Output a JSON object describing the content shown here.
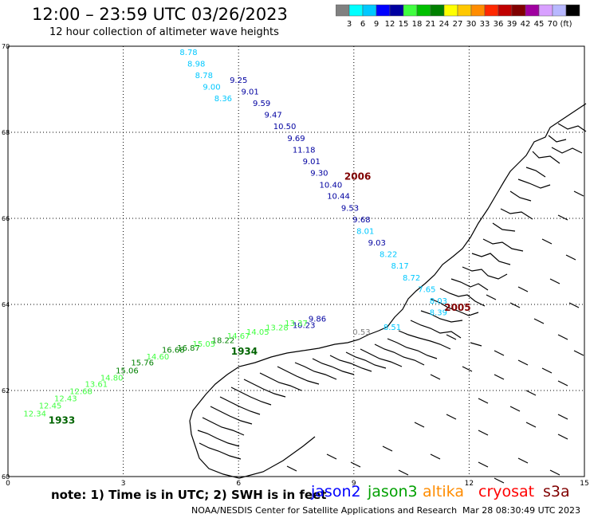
{
  "header": {
    "title": "12:00 – 23:59 UTC 03/26/2023",
    "subtitle": "12 hour collection of altimeter wave heights"
  },
  "colorbar": {
    "colors": [
      "#808080",
      "#00ffff",
      "#00c8ff",
      "#0000ff",
      "#0000a0",
      "#40ff40",
      "#00c000",
      "#008000",
      "#ffff00",
      "#ffc800",
      "#ff8c00",
      "#ff2800",
      "#c00000",
      "#800000",
      "#a000a0",
      "#d8a0ff",
      "#b8b8ff",
      "#000000"
    ],
    "labels": [
      "3",
      "6",
      "9",
      "12",
      "15",
      "18",
      "21",
      "24",
      "27",
      "30",
      "33",
      "36",
      "39",
      "42",
      "45",
      "70",
      "(ft)"
    ]
  },
  "chart_data": {
    "type": "scatter",
    "title": "12:00 – 23:59 UTC 03/26/2023",
    "subtitle": "12 hour collection of altimeter wave heights",
    "xlabel": "",
    "ylabel": "",
    "xlim": [
      0,
      15
    ],
    "ylim": [
      60,
      70
    ],
    "x_ticks": [
      "0",
      "3",
      "6",
      "9",
      "12",
      "15"
    ],
    "y_ticks": [
      "60",
      "62",
      "64",
      "66",
      "68",
      "70"
    ],
    "grid": true,
    "legend_placement": "bottom",
    "series": [
      {
        "name": "jason2",
        "color": "#0000ff",
        "points": [
          {
            "x": 6.0,
            "y": 69.15,
            "label": "9.25",
            "color": "#0000a0"
          },
          {
            "x": 6.3,
            "y": 68.88,
            "label": "9.01",
            "color": "#0000a0"
          },
          {
            "x": 6.6,
            "y": 68.61,
            "label": "9.59",
            "color": "#0000a0"
          },
          {
            "x": 6.9,
            "y": 68.34,
            "label": "9.47",
            "color": "#0000a0"
          },
          {
            "x": 7.2,
            "y": 68.07,
            "label": "10.50",
            "color": "#0000a0"
          },
          {
            "x": 7.5,
            "y": 67.8,
            "label": "9.69",
            "color": "#0000a0"
          },
          {
            "x": 7.7,
            "y": 67.53,
            "label": "11.18",
            "color": "#0000a0"
          },
          {
            "x": 7.9,
            "y": 67.26,
            "label": "9.01",
            "color": "#0000a0"
          },
          {
            "x": 8.1,
            "y": 66.99,
            "label": "9.30",
            "color": "#0000a0"
          },
          {
            "x": 8.4,
            "y": 66.71,
            "label": "10.40",
            "color": "#0000a0"
          },
          {
            "x": 8.6,
            "y": 66.45,
            "label": "10.44",
            "color": "#0000a0"
          },
          {
            "x": 8.9,
            "y": 66.18,
            "label": "9.53",
            "color": "#0000a0"
          },
          {
            "x": 9.2,
            "y": 65.91,
            "label": "9.68",
            "color": "#0000a0"
          },
          {
            "x": 8.05,
            "y": 63.6,
            "label": "9.86",
            "color": "#0000a0"
          },
          {
            "x": 7.7,
            "y": 63.45,
            "label": "10.23",
            "color": "#0000a0"
          }
        ]
      },
      {
        "name": "jason3",
        "color": "#00a000",
        "points": [
          {
            "x": 0.7,
            "y": 61.4,
            "label": "12.34",
            "color": "#40ff40"
          },
          {
            "x": 1.1,
            "y": 61.58,
            "label": "12.45",
            "color": "#40ff40"
          },
          {
            "x": 1.5,
            "y": 61.75,
            "label": "12.43",
            "color": "#40ff40"
          },
          {
            "x": 1.9,
            "y": 61.92,
            "label": "12.68",
            "color": "#40ff40"
          },
          {
            "x": 2.3,
            "y": 62.08,
            "label": "13.61",
            "color": "#40ff40"
          },
          {
            "x": 2.7,
            "y": 62.23,
            "label": "14.80",
            "color": "#40ff40"
          },
          {
            "x": 3.1,
            "y": 62.4,
            "label": "15.06",
            "color": "#008000"
          },
          {
            "x": 3.5,
            "y": 62.58,
            "label": "15.76",
            "color": "#008000"
          },
          {
            "x": 3.9,
            "y": 62.72,
            "label": "14.60",
            "color": "#40ff40"
          },
          {
            "x": 4.3,
            "y": 62.88,
            "label": "16.68",
            "color": "#008000"
          },
          {
            "x": 4.7,
            "y": 62.93,
            "label": "16.87",
            "color": "#008000"
          },
          {
            "x": 5.1,
            "y": 63.02,
            "label": "15.05",
            "color": "#40ff40"
          },
          {
            "x": 5.6,
            "y": 63.1,
            "label": "18.22",
            "color": "#008000"
          },
          {
            "x": 6.0,
            "y": 63.2,
            "label": "14.67",
            "color": "#40ff40"
          },
          {
            "x": 6.5,
            "y": 63.3,
            "label": "14.05",
            "color": "#40ff40"
          },
          {
            "x": 7.0,
            "y": 63.4,
            "label": "13.28",
            "color": "#40ff40"
          },
          {
            "x": 7.5,
            "y": 63.5,
            "label": "13.37",
            "color": "#40ff40"
          }
        ]
      },
      {
        "name": "altika",
        "color": "#ff8c00",
        "points": []
      },
      {
        "name": "cryosat",
        "color": "#ff0000",
        "points": []
      },
      {
        "name": "s3a",
        "color": "#800000",
        "points": [
          {
            "x": 4.7,
            "y": 69.8,
            "label": "8.78",
            "color": "#00c8ff"
          },
          {
            "x": 4.9,
            "y": 69.53,
            "label": "8.98",
            "color": "#00c8ff"
          },
          {
            "x": 5.1,
            "y": 69.26,
            "label": "8.78",
            "color": "#00c8ff"
          },
          {
            "x": 5.3,
            "y": 68.99,
            "label": "9.00",
            "color": "#00c8ff"
          },
          {
            "x": 5.6,
            "y": 68.72,
            "label": "8.36",
            "color": "#00c8ff"
          },
          {
            "x": 9.3,
            "y": 65.64,
            "label": "8.01",
            "color": "#00c8ff"
          },
          {
            "x": 9.6,
            "y": 65.37,
            "label": "9.03",
            "color": "#0000a0"
          },
          {
            "x": 9.9,
            "y": 65.1,
            "label": "8.22",
            "color": "#00c8ff"
          },
          {
            "x": 10.2,
            "y": 64.83,
            "label": "8.17",
            "color": "#00c8ff"
          },
          {
            "x": 10.5,
            "y": 64.56,
            "label": "8.72",
            "color": "#00c8ff"
          },
          {
            "x": 10.9,
            "y": 64.29,
            "label": "7.65",
            "color": "#00c8ff"
          },
          {
            "x": 11.2,
            "y": 64.02,
            "label": "8.03",
            "color": "#00c8ff"
          },
          {
            "x": 11.2,
            "y": 63.75,
            "label": "8.39",
            "color": "#00c8ff"
          },
          {
            "x": 10.0,
            "y": 63.41,
            "label": "8.51",
            "color": "#00c8ff"
          },
          {
            "x": 9.2,
            "y": 63.3,
            "label": "0.53",
            "color": "#808080"
          }
        ]
      }
    ],
    "annotations": [
      {
        "text": "2006",
        "x": 9.1,
        "y": 66.9,
        "color": "#800000"
      },
      {
        "text": "2005",
        "x": 11.7,
        "y": 63.85,
        "color": "#800000"
      },
      {
        "text": "1934",
        "x": 6.15,
        "y": 62.83,
        "color": "#006400"
      },
      {
        "text": "1933",
        "x": 1.4,
        "y": 61.23,
        "color": "#006400"
      }
    ]
  },
  "footer": {
    "note": "note:  1) Time is in UTC;  2) SWH is in feet",
    "legend": [
      {
        "label": "jason2",
        "color": "#0000ff"
      },
      {
        "label": "jason3",
        "color": "#00a000"
      },
      {
        "label": "altika",
        "color": "#ff8c00"
      },
      {
        "label": "cryosat",
        "color": "#ff0000"
      },
      {
        "label": "s3a",
        "color": "#800000"
      }
    ],
    "credit": "NOAA/NESDIS Center for Satellite Applications and Research",
    "timestamp": "Mar 28 08:30:49 UTC 2023"
  }
}
